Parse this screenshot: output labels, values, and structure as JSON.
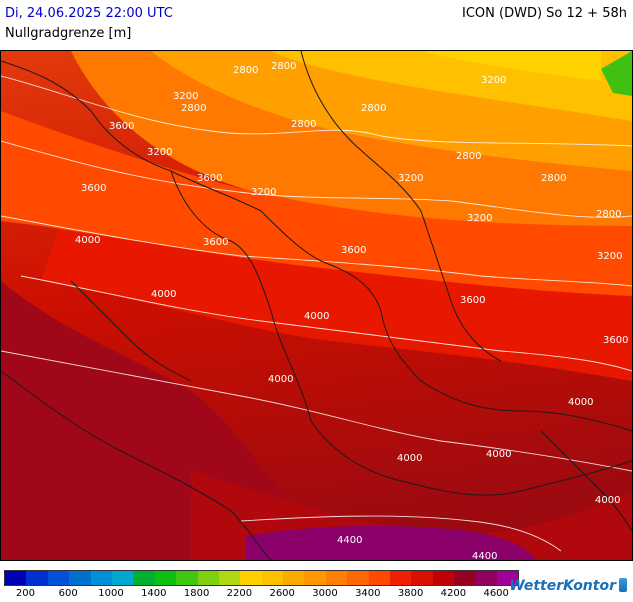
{
  "header": {
    "datetime": "Di, 24.06.2025 22:00 UTC",
    "model": "ICON (DWD) So 12 + 58h",
    "parameter": "Nullgradgrenze [m]"
  },
  "map": {
    "contour_labels": [
      {
        "text": "2800"
      },
      {
        "text": "2800"
      },
      {
        "text": "2800"
      },
      {
        "text": "3200"
      },
      {
        "text": "2800"
      },
      {
        "text": "3600"
      },
      {
        "text": "3200"
      },
      {
        "text": "3600"
      },
      {
        "text": "3200"
      },
      {
        "text": "3600"
      },
      {
        "text": "3200"
      },
      {
        "text": "4000"
      },
      {
        "text": "3600"
      },
      {
        "text": "4000"
      },
      {
        "text": "2800"
      },
      {
        "text": "2800"
      },
      {
        "text": "2800"
      },
      {
        "text": "3200"
      },
      {
        "text": "2800"
      },
      {
        "text": "3200"
      },
      {
        "text": "3200"
      },
      {
        "text": "3600"
      },
      {
        "text": "4000"
      },
      {
        "text": "3600"
      },
      {
        "text": "3600"
      },
      {
        "text": "4000"
      },
      {
        "text": "4000"
      },
      {
        "text": "4000"
      },
      {
        "text": "4000"
      },
      {
        "text": "4000"
      },
      {
        "text": "4400"
      },
      {
        "text": "4400"
      }
    ]
  },
  "legend": {
    "colors": [
      "#0000b4",
      "#0030d0",
      "#0050d8",
      "#0070d0",
      "#0090d8",
      "#00a8d0",
      "#00b030",
      "#10c010",
      "#40c810",
      "#80d010",
      "#b0d810",
      "#ffd000",
      "#ffc000",
      "#ffaa00",
      "#ff9800",
      "#ff8000",
      "#ff6800",
      "#ff4800",
      "#f02000",
      "#d81000",
      "#c00008",
      "#980020",
      "#900060",
      "#a00098"
    ],
    "labels": [
      "200",
      "600",
      "1000",
      "1400",
      "1800",
      "2200",
      "2600",
      "3000",
      "3400",
      "3800",
      "4200",
      "4600"
    ]
  },
  "brand": {
    "name": "WetterKontor",
    "icon": "brand-bars-icon"
  }
}
